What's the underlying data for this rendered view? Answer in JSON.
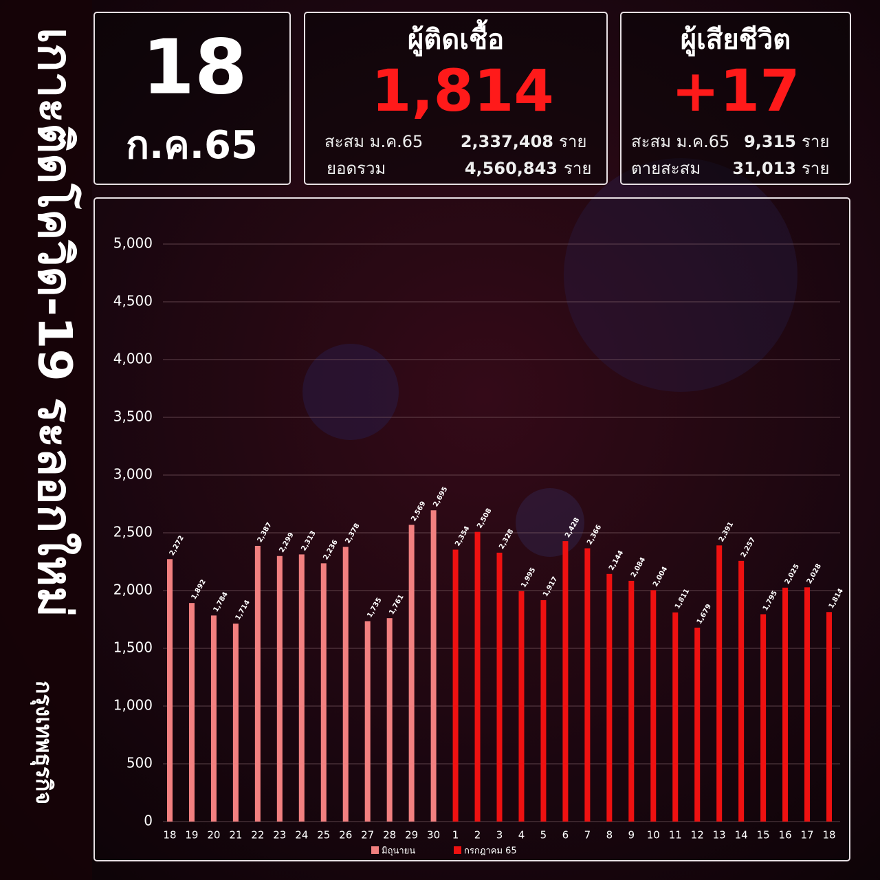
{
  "header": {
    "side_title": "เกาะติดโควิด-19 ระลอกใหม่",
    "brand": "กรุงเทพธุรกิจ",
    "date_day": "18",
    "date_month": "ก.ค.65",
    "infected": {
      "title": "ผู้ติดเชื้อ",
      "value": "1,814",
      "row1_label": "สะสม ม.ค.65",
      "row1_value": "2,337,408",
      "row1_unit": "ราย",
      "row2_label": "ยอดรวม",
      "row2_value": "4,560,843",
      "row2_unit": "ราย"
    },
    "deaths": {
      "title": "ผู้เสียชีวิต",
      "value": "+17",
      "row1_label": "สะสม ม.ค.65",
      "row1_value": "9,315",
      "row1_unit": "ราย",
      "row2_label": "ตายสะสม",
      "row2_value": "31,013",
      "row2_unit": "ราย"
    }
  },
  "chart_data": {
    "type": "bar",
    "categories": [
      "18",
      "19",
      "20",
      "21",
      "22",
      "23",
      "24",
      "25",
      "26",
      "27",
      "28",
      "29",
      "30",
      "1",
      "2",
      "3",
      "4",
      "5",
      "6",
      "7",
      "8",
      "9",
      "10",
      "11",
      "12",
      "13",
      "14",
      "15",
      "16",
      "17",
      "18"
    ],
    "series": [
      {
        "name": "มิถุนายน",
        "color": "#f28080",
        "values": [
          2272,
          1892,
          1784,
          1714,
          2387,
          2299,
          2313,
          2236,
          2378,
          1735,
          1761,
          2569,
          2695,
          null,
          null,
          null,
          null,
          null,
          null,
          null,
          null,
          null,
          null,
          null,
          null,
          null,
          null,
          null,
          null,
          null,
          null
        ],
        "value_labels": [
          "2,272",
          "1,892",
          "1,784",
          "1,714",
          "2,387",
          "2,299",
          "2,313",
          "2,236",
          "2,378",
          "1,735",
          "1,761",
          "2,569",
          "2,695",
          null,
          null,
          null,
          null,
          null,
          null,
          null,
          null,
          null,
          null,
          null,
          null,
          null,
          null,
          null,
          null,
          null,
          null
        ]
      },
      {
        "name": "กรกฎาคม 65",
        "color": "#ee1111",
        "values": [
          null,
          null,
          null,
          null,
          null,
          null,
          null,
          null,
          null,
          null,
          null,
          null,
          null,
          2354,
          2508,
          2328,
          1995,
          1917,
          2428,
          2366,
          2144,
          2084,
          2004,
          1811,
          1679,
          2391,
          2257,
          1795,
          2025,
          2028,
          1814
        ],
        "value_labels": [
          null,
          null,
          null,
          null,
          null,
          null,
          null,
          null,
          null,
          null,
          null,
          null,
          null,
          "2,354",
          "2,508",
          "2,328",
          "1,995",
          "1,917",
          "2,428",
          "2,366",
          "2,144",
          "2,084",
          "2,004",
          "1,811",
          "1,679",
          "2,391",
          "2,257",
          "1,795",
          "2,025",
          "2,028",
          "1,814"
        ]
      }
    ],
    "ylim": [
      0,
      5000
    ],
    "yticks": [
      0,
      500,
      {
        "value": 1000,
        "label": "1,000"
      },
      {
        "value": 1500,
        "label": "1,500"
      },
      {
        "value": 2000,
        "label": "2,000"
      },
      {
        "value": 2500,
        "label": "2,500"
      },
      {
        "value": 3000,
        "label": "3,000"
      },
      {
        "value": 3500,
        "label": "3,500"
      },
      {
        "value": 4000,
        "label": "4,000"
      },
      {
        "value": 4500,
        "label": "4,500"
      },
      {
        "value": 5000,
        "label": "5,000"
      }
    ],
    "grid": true,
    "legend": "bottom"
  }
}
